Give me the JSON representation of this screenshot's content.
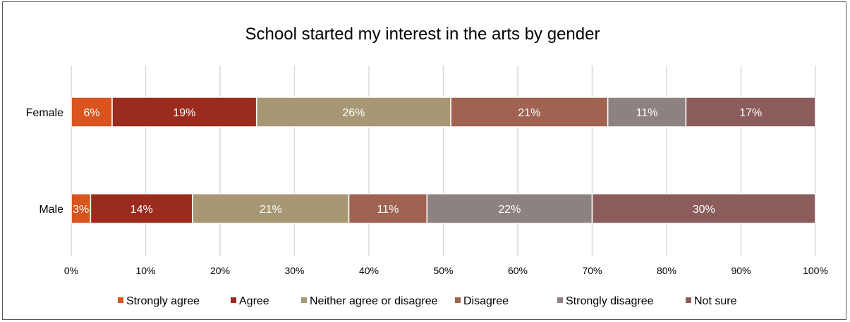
{
  "chart_data": {
    "type": "bar",
    "orientation": "horizontal",
    "stacked": "100%",
    "title": "School started my interest in the arts by gender",
    "categories": [
      "Female",
      "Male"
    ],
    "series": [
      {
        "name": "Strongly agree",
        "color": "#d9541e",
        "values": [
          5.5,
          2.6
        ],
        "labels": [
          "6%",
          "3%"
        ]
      },
      {
        "name": "Agree",
        "color": "#9b2b1f",
        "values": [
          19.4,
          13.7
        ],
        "labels": [
          "19%",
          "14%"
        ]
      },
      {
        "name": "Neither agree or disagree",
        "color": "#a89774",
        "values": [
          26.1,
          21.0
        ],
        "labels": [
          "26%",
          "21%"
        ]
      },
      {
        "name": "Disagree",
        "color": "#a06352",
        "values": [
          21.1,
          10.5
        ],
        "labels": [
          "21%",
          "11%"
        ]
      },
      {
        "name": "Strongly disagree",
        "color": "#8c8282",
        "values": [
          10.5,
          22.2
        ],
        "labels": [
          "11%",
          "22%"
        ]
      },
      {
        "name": "Not sure",
        "color": "#8b5c5c",
        "values": [
          17.4,
          30.0
        ],
        "labels": [
          "17%",
          "30%"
        ]
      }
    ],
    "xticks": [
      "0%",
      "10%",
      "20%",
      "30%",
      "40%",
      "50%",
      "60%",
      "70%",
      "80%",
      "90%",
      "100%"
    ],
    "xlim": [
      0,
      100
    ],
    "grid": "vertical",
    "legend_position": "bottom"
  }
}
